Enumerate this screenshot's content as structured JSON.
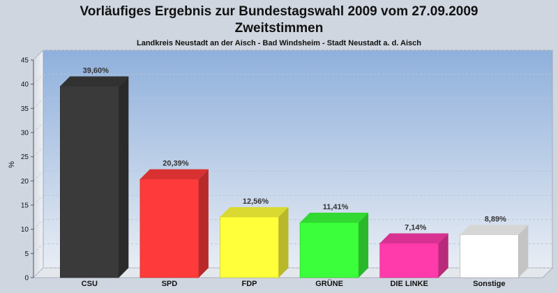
{
  "chart_data": {
    "type": "bar",
    "title": "Vorläufiges Ergebnis zur Bundestagswahl 2009 vom 27.09.2009",
    "subtitle_line": "Zweitstimmen",
    "subtitle": "Landkreis Neustadt an der Aisch - Bad Windsheim - Stadt Neustadt a. d. Aisch",
    "ylabel": "%",
    "xlabel": "",
    "ylim": [
      0,
      45
    ],
    "yticks": [
      0,
      5,
      10,
      15,
      20,
      25,
      30,
      35,
      40,
      45
    ],
    "grid": true,
    "categories": [
      "CSU",
      "SPD",
      "FDP",
      "GRÜNE",
      "DIE LINKE",
      "Sonstige"
    ],
    "values": [
      39.6,
      20.39,
      12.56,
      11.41,
      7.14,
      8.89
    ],
    "value_labels": [
      "39,60%",
      "20,39%",
      "12,56%",
      "11,41%",
      "7,14%",
      "8,89%"
    ],
    "colors": [
      "#3a3a3a",
      "#ff3a3a",
      "#ffff3a",
      "#3aff3a",
      "#ff3aaa",
      "#ffffff"
    ]
  }
}
